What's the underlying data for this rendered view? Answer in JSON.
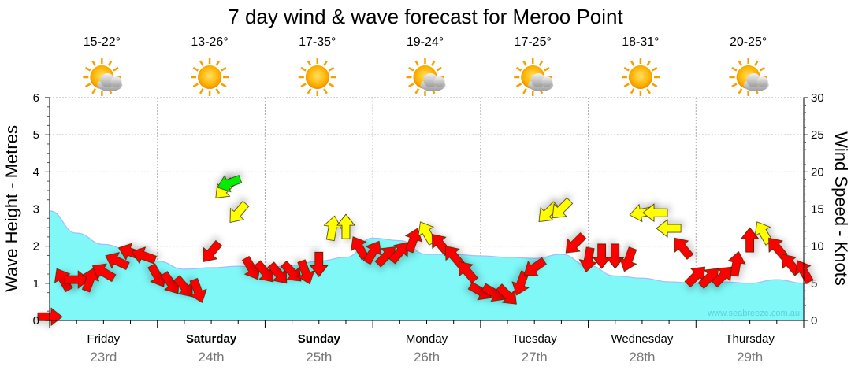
{
  "chart_data": {
    "type": "area+wind-arrows",
    "title": "7 day wind & wave forecast for Meroo Point",
    "ylabel_left": "Wave Height - Metres",
    "ylabel_right": "Wind Speed - Knots",
    "ylim_left": [
      0,
      6
    ],
    "ylim_right": [
      0,
      30
    ],
    "yticks_left": [
      "0",
      "1",
      "2",
      "3",
      "4",
      "5",
      "6"
    ],
    "yticks_right": [
      "0",
      "5",
      "10",
      "15",
      "20",
      "25",
      "30"
    ],
    "xlim_hours": [
      0,
      168
    ],
    "grid": true,
    "watermark": "www.seabreeze.com.au",
    "days": [
      {
        "name": "Friday",
        "date": "23rd",
        "temp": "15-22°",
        "icon": "partly-cloudy-icon",
        "bold": false
      },
      {
        "name": "Saturday",
        "date": "24th",
        "temp": "13-26°",
        "icon": "sunny-icon",
        "bold": true
      },
      {
        "name": "Sunday",
        "date": "25th",
        "temp": "17-35°",
        "icon": "sunny-icon",
        "bold": true
      },
      {
        "name": "Monday",
        "date": "26th",
        "temp": "19-24°",
        "icon": "partly-cloudy-icon",
        "bold": false
      },
      {
        "name": "Tuesday",
        "date": "27th",
        "temp": "17-25°",
        "icon": "partly-cloudy-icon",
        "bold": false
      },
      {
        "name": "Wednesday",
        "date": "28th",
        "temp": "18-31°",
        "icon": "sunny-icon",
        "bold": false
      },
      {
        "name": "Thursday",
        "date": "29th",
        "temp": "20-25°",
        "icon": "partly-cloudy-icon",
        "bold": false
      }
    ],
    "wave": {
      "name": "Wave height (m)",
      "color": "#80f8f8",
      "hours": [
        0,
        6,
        12,
        18,
        24,
        30,
        36,
        42,
        48,
        54,
        60,
        66,
        72,
        78,
        84,
        90,
        96,
        102,
        108,
        114,
        120,
        126,
        132,
        138,
        144,
        150,
        156,
        162,
        168
      ],
      "values": [
        2.95,
        2.35,
        2.05,
        1.88,
        1.6,
        1.38,
        1.42,
        1.46,
        1.42,
        1.48,
        1.6,
        1.7,
        2.22,
        2.15,
        1.78,
        1.78,
        1.74,
        1.7,
        1.67,
        1.78,
        1.48,
        1.2,
        1.14,
        1.04,
        1.0,
        1.04,
        1.0,
        1.1,
        1.0
      ]
    },
    "wind": {
      "name": "Wind speed (knots) & direction",
      "colors": {
        "light": "#ff0000",
        "moderate": "#ffff00",
        "strong": "#00ee00"
      },
      "points": [
        {
          "h": 0,
          "kn": 0.5,
          "dir": 90,
          "c": "light"
        },
        {
          "h": 3,
          "kn": 5.5,
          "dir": 330,
          "c": "light"
        },
        {
          "h": 6,
          "kn": 5.5,
          "dir": 90,
          "c": "light"
        },
        {
          "h": 9,
          "kn": 5.5,
          "dir": 20,
          "c": "light"
        },
        {
          "h": 12,
          "kn": 6.5,
          "dir": 300,
          "c": "light"
        },
        {
          "h": 15,
          "kn": 8,
          "dir": 295,
          "c": "light"
        },
        {
          "h": 18,
          "kn": 9.2,
          "dir": 290,
          "c": "light"
        },
        {
          "h": 21,
          "kn": 8.7,
          "dir": 290,
          "c": "light"
        },
        {
          "h": 24,
          "kn": 6,
          "dir": 150,
          "c": "light"
        },
        {
          "h": 27,
          "kn": 5,
          "dir": 145,
          "c": "light"
        },
        {
          "h": 30,
          "kn": 4.5,
          "dir": 140,
          "c": "light"
        },
        {
          "h": 33,
          "kn": 4,
          "dir": 160,
          "c": "light"
        },
        {
          "h": 36,
          "kn": 9.2,
          "dir": 220,
          "c": "light"
        },
        {
          "h": 39,
          "kn": 17.7,
          "dir": 225,
          "c": "moderate"
        },
        {
          "h": 40,
          "kn": 18.5,
          "dir": 250,
          "c": "strong"
        },
        {
          "h": 42,
          "kn": 14.5,
          "dir": 220,
          "c": "moderate"
        },
        {
          "h": 45,
          "kn": 7,
          "dir": 150,
          "c": "light"
        },
        {
          "h": 48,
          "kn": 6.5,
          "dir": 140,
          "c": "light"
        },
        {
          "h": 51,
          "kn": 6.3,
          "dir": 140,
          "c": "light"
        },
        {
          "h": 54,
          "kn": 6.5,
          "dir": 135,
          "c": "light"
        },
        {
          "h": 57,
          "kn": 6.5,
          "dir": 160,
          "c": "light"
        },
        {
          "h": 60,
          "kn": 7.6,
          "dir": 180,
          "c": "light"
        },
        {
          "h": 63,
          "kn": 12.4,
          "dir": 10,
          "c": "moderate"
        },
        {
          "h": 66,
          "kn": 12.6,
          "dir": 0,
          "c": "moderate"
        },
        {
          "h": 69,
          "kn": 9.8,
          "dir": 330,
          "c": "light"
        },
        {
          "h": 72,
          "kn": 9.2,
          "dir": 30,
          "c": "light"
        },
        {
          "h": 75,
          "kn": 8.7,
          "dir": 45,
          "c": "light"
        },
        {
          "h": 78,
          "kn": 9.2,
          "dir": 40,
          "c": "light"
        },
        {
          "h": 81,
          "kn": 10.8,
          "dir": 20,
          "c": "light"
        },
        {
          "h": 84,
          "kn": 11.8,
          "dir": 330,
          "c": "moderate"
        },
        {
          "h": 87,
          "kn": 10.3,
          "dir": 320,
          "c": "light"
        },
        {
          "h": 90,
          "kn": 8.7,
          "dir": 320,
          "c": "light"
        },
        {
          "h": 93,
          "kn": 6.6,
          "dir": 320,
          "c": "light"
        },
        {
          "h": 96,
          "kn": 3.9,
          "dir": 120,
          "c": "light"
        },
        {
          "h": 99,
          "kn": 3.7,
          "dir": 120,
          "c": "light"
        },
        {
          "h": 102,
          "kn": 3.4,
          "dir": 135,
          "c": "light"
        },
        {
          "h": 105,
          "kn": 5,
          "dir": 200,
          "c": "light"
        },
        {
          "h": 108,
          "kn": 7.1,
          "dir": 235,
          "c": "light"
        },
        {
          "h": 111,
          "kn": 14.5,
          "dir": 225,
          "c": "moderate"
        },
        {
          "h": 114,
          "kn": 15,
          "dir": 225,
          "c": "moderate"
        },
        {
          "h": 117,
          "kn": 10.3,
          "dir": 225,
          "c": "light"
        },
        {
          "h": 120,
          "kn": 8.2,
          "dir": 190,
          "c": "light"
        },
        {
          "h": 123,
          "kn": 8.7,
          "dir": 180,
          "c": "light"
        },
        {
          "h": 126,
          "kn": 8.7,
          "dir": 180,
          "c": "light"
        },
        {
          "h": 129,
          "kn": 8.2,
          "dir": 200,
          "c": "light"
        },
        {
          "h": 132,
          "kn": 14.5,
          "dir": 260,
          "c": "moderate"
        },
        {
          "h": 135,
          "kn": 14.5,
          "dir": 270,
          "c": "moderate"
        },
        {
          "h": 138,
          "kn": 12.4,
          "dir": 270,
          "c": "moderate"
        },
        {
          "h": 141,
          "kn": 9.8,
          "dir": 320,
          "c": "light"
        },
        {
          "h": 144,
          "kn": 6,
          "dir": 45,
          "c": "light"
        },
        {
          "h": 147,
          "kn": 5.8,
          "dir": 45,
          "c": "light"
        },
        {
          "h": 150,
          "kn": 6,
          "dir": 45,
          "c": "light"
        },
        {
          "h": 153,
          "kn": 7.6,
          "dir": 10,
          "c": "light"
        },
        {
          "h": 156,
          "kn": 10.8,
          "dir": 0,
          "c": "light"
        },
        {
          "h": 159,
          "kn": 11.8,
          "dir": 330,
          "c": "moderate"
        },
        {
          "h": 162,
          "kn": 9.8,
          "dir": 320,
          "c": "light"
        },
        {
          "h": 165,
          "kn": 7.6,
          "dir": 320,
          "c": "light"
        },
        {
          "h": 168,
          "kn": 6.6,
          "dir": 330,
          "c": "light"
        }
      ]
    }
  }
}
